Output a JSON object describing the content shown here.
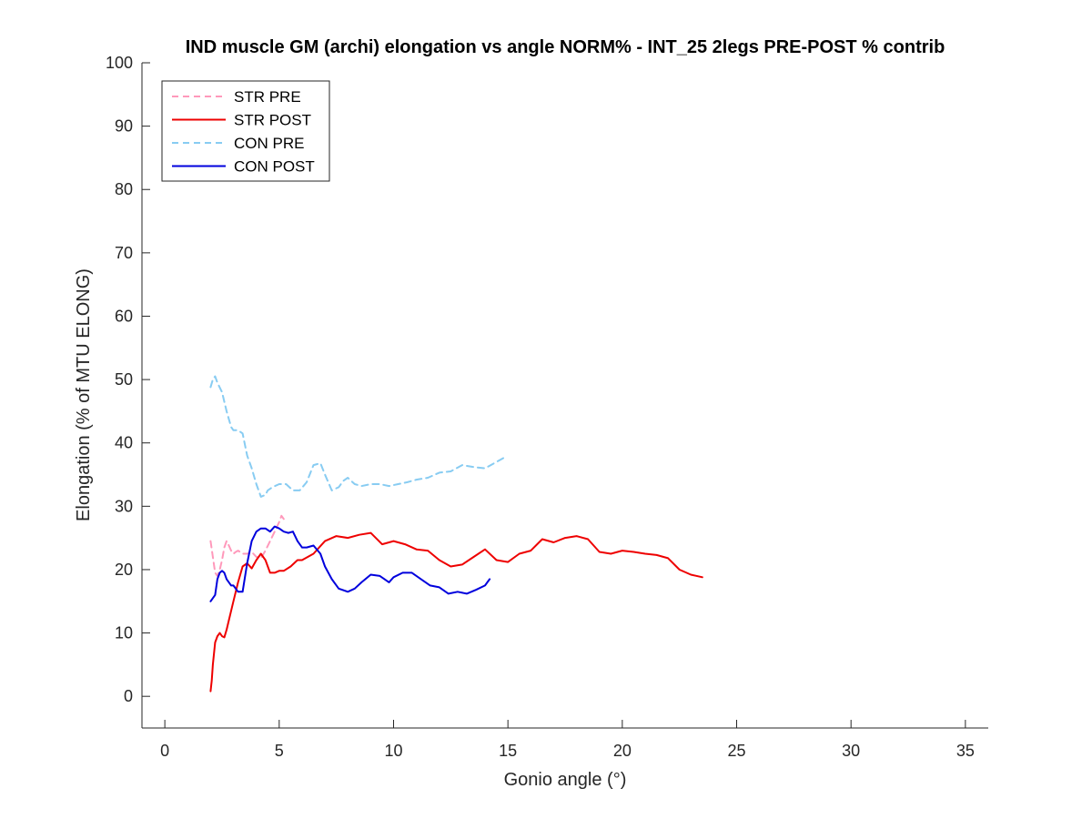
{
  "chart_data": {
    "type": "line",
    "title": "IND muscle GM (archi) elongation vs angle NORM% - INT_25 2legs PRE-POST % contrib",
    "xlabel": "Gonio angle (°)",
    "ylabel": "Elongation (% of MTU ELONG)",
    "xlim": [
      -1,
      36
    ],
    "ylim": [
      -5,
      100
    ],
    "xticks": [
      0,
      5,
      10,
      15,
      20,
      25,
      30,
      35
    ],
    "yticks": [
      0,
      10,
      20,
      30,
      40,
      50,
      60,
      70,
      80,
      90,
      100
    ],
    "xtick_labels": [
      "0",
      "5",
      "10",
      "15",
      "20",
      "25",
      "30",
      "35"
    ],
    "ytick_labels": [
      "0",
      "10",
      "20",
      "30",
      "40",
      "50",
      "60",
      "70",
      "80",
      "90",
      "100"
    ],
    "grid": false,
    "legend_position": "top-left",
    "series": [
      {
        "name": "STR PRE",
        "color": "#ff99bb",
        "dash": "dashed",
        "x": [
          2.0,
          2.1,
          2.2,
          2.3,
          2.4,
          2.5,
          2.6,
          2.7,
          2.8,
          2.9,
          3.0,
          3.1,
          3.2,
          3.4,
          3.6,
          3.8,
          4.0,
          4.2,
          4.4,
          4.6,
          4.8,
          5.0,
          5.1,
          5.2
        ],
        "y": [
          24.5,
          22.0,
          19.5,
          19.0,
          20.0,
          21.5,
          23.5,
          24.5,
          23.8,
          23.0,
          22.5,
          22.8,
          23.0,
          22.5,
          22.5,
          22.8,
          22.0,
          21.8,
          23.0,
          24.5,
          26.0,
          27.5,
          28.5,
          28.0
        ]
      },
      {
        "name": "STR POST",
        "color": "#ee0000",
        "dash": "solid",
        "x": [
          2.0,
          2.05,
          2.1,
          2.2,
          2.3,
          2.4,
          2.5,
          2.6,
          2.7,
          2.8,
          2.9,
          3.0,
          3.2,
          3.4,
          3.6,
          3.8,
          4.0,
          4.2,
          4.4,
          4.6,
          4.8,
          5.0,
          5.2,
          5.5,
          5.8,
          6.0,
          6.5,
          7.0,
          7.5,
          8.0,
          8.5,
          9.0,
          9.5,
          10.0,
          10.5,
          11.0,
          11.5,
          12.0,
          12.5,
          13.0,
          13.5,
          14.0,
          14.5,
          15.0,
          15.5,
          16.0,
          16.5,
          17.0,
          17.5,
          18.0,
          18.5,
          19.0,
          19.5,
          20.0,
          20.5,
          21.0,
          21.5,
          22.0,
          22.5,
          23.0,
          23.5
        ],
        "y": [
          0.8,
          2.5,
          5.0,
          8.5,
          9.5,
          10.0,
          9.5,
          9.3,
          10.5,
          12.0,
          13.5,
          15.0,
          18.0,
          20.5,
          21.0,
          20.2,
          21.5,
          22.5,
          21.5,
          19.5,
          19.5,
          19.8,
          19.8,
          20.5,
          21.5,
          21.5,
          22.5,
          24.5,
          25.3,
          25.0,
          25.5,
          25.8,
          24.0,
          24.5,
          24.0,
          23.2,
          23.0,
          21.5,
          20.5,
          20.8,
          22.0,
          23.2,
          21.5,
          21.2,
          22.5,
          23.0,
          24.8,
          24.3,
          25.0,
          25.3,
          24.8,
          22.8,
          22.5,
          23.0,
          22.8,
          22.5,
          22.3,
          21.8,
          20.0,
          19.2,
          18.8
        ]
      },
      {
        "name": "CON PRE",
        "color": "#88ccf2",
        "dash": "dashed",
        "x": [
          2.0,
          2.1,
          2.2,
          2.3,
          2.5,
          2.7,
          2.9,
          3.0,
          3.2,
          3.4,
          3.6,
          3.8,
          4.0,
          4.2,
          4.4,
          4.5,
          4.7,
          5.0,
          5.3,
          5.6,
          5.9,
          6.2,
          6.5,
          6.8,
          7.0,
          7.3,
          7.6,
          7.8,
          8.0,
          8.3,
          8.6,
          9.0,
          9.4,
          9.8,
          10.2,
          10.6,
          11.0,
          11.5,
          12.0,
          12.5,
          13.0,
          13.5,
          14.0,
          14.5,
          14.9
        ],
        "y": [
          48.8,
          50.0,
          50.5,
          49.5,
          48.0,
          45.0,
          42.5,
          42.0,
          42.0,
          41.5,
          38.0,
          36.0,
          33.5,
          31.5,
          31.8,
          32.5,
          33.0,
          33.5,
          33.5,
          32.5,
          32.5,
          33.8,
          36.5,
          36.8,
          35.0,
          32.5,
          33.0,
          34.0,
          34.5,
          33.5,
          33.2,
          33.5,
          33.5,
          33.2,
          33.5,
          33.8,
          34.2,
          34.5,
          35.3,
          35.5,
          36.5,
          36.2,
          36.0,
          37.0,
          37.8
        ]
      },
      {
        "name": "CON POST",
        "color": "#0000dd",
        "dash": "solid",
        "x": [
          2.0,
          2.1,
          2.2,
          2.3,
          2.4,
          2.5,
          2.6,
          2.7,
          2.8,
          2.9,
          3.0,
          3.2,
          3.4,
          3.6,
          3.8,
          4.0,
          4.2,
          4.4,
          4.6,
          4.8,
          5.0,
          5.2,
          5.4,
          5.6,
          5.8,
          6.0,
          6.2,
          6.5,
          6.8,
          7.0,
          7.3,
          7.6,
          8.0,
          8.3,
          8.6,
          9.0,
          9.4,
          9.8,
          10.0,
          10.4,
          10.8,
          11.2,
          11.6,
          12.0,
          12.4,
          12.8,
          13.2,
          13.6,
          14.0,
          14.2
        ],
        "y": [
          15.0,
          15.5,
          16.0,
          18.5,
          19.5,
          19.8,
          19.5,
          18.5,
          18.0,
          17.5,
          17.5,
          16.5,
          16.5,
          21.0,
          24.5,
          26.0,
          26.5,
          26.5,
          26.0,
          26.8,
          26.5,
          26.0,
          25.8,
          26.0,
          24.5,
          23.5,
          23.5,
          23.8,
          22.5,
          20.5,
          18.5,
          17.0,
          16.5,
          17.0,
          18.0,
          19.2,
          19.0,
          18.0,
          18.8,
          19.5,
          19.5,
          18.5,
          17.5,
          17.2,
          16.2,
          16.5,
          16.2,
          16.8,
          17.5,
          18.5
        ]
      }
    ]
  }
}
